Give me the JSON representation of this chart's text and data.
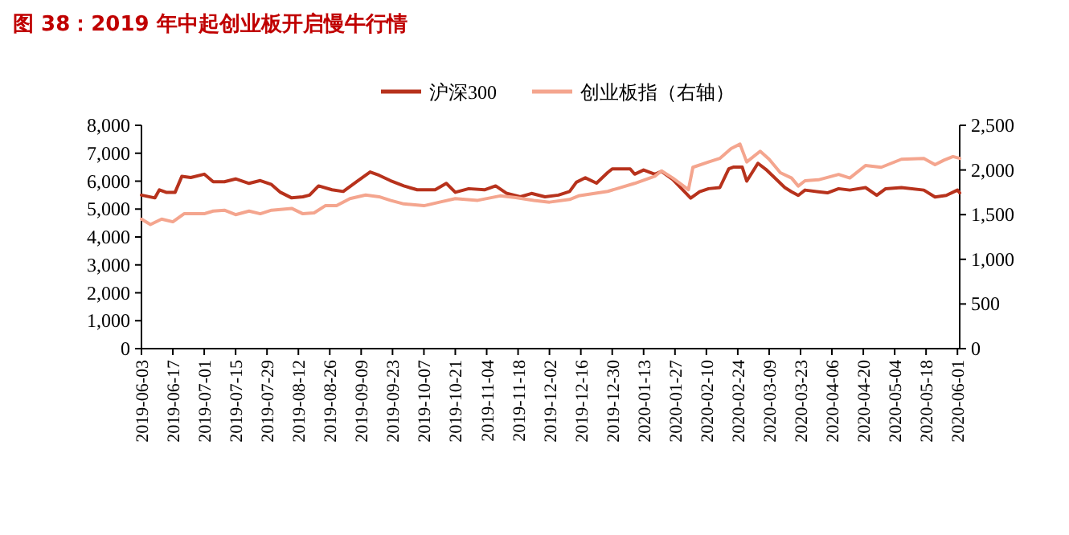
{
  "chart_data": {
    "type": "line",
    "title": "图 38：2019 年中起创业板开启慢牛行情",
    "legend": "top",
    "grid": false,
    "line_style": "solid",
    "marker": "none",
    "xlim": [
      "2019-06-03",
      "2020-06-02"
    ],
    "xticks": [
      "2019-06-03",
      "2019-06-17",
      "2019-07-01",
      "2019-07-15",
      "2019-07-29",
      "2019-08-12",
      "2019-08-26",
      "2019-09-09",
      "2019-09-23",
      "2019-10-07",
      "2019-10-21",
      "2019-11-04",
      "2019-11-18",
      "2019-12-02",
      "2019-12-16",
      "2019-12-30",
      "2020-01-13",
      "2020-01-27",
      "2020-02-10",
      "2020-02-24",
      "2020-03-09",
      "2020-03-23",
      "2020-04-06",
      "2020-04-20",
      "2020-05-04",
      "2020-05-18",
      "2020-06-01"
    ],
    "ylim": [
      0,
      8000
    ],
    "yticks": [
      0,
      {
        "value": 1000,
        "label": "1,000"
      },
      {
        "value": 2000,
        "label": "2,000"
      },
      {
        "value": 3000,
        "label": "3,000"
      },
      {
        "value": 4000,
        "label": "4,000"
      },
      {
        "value": 5000,
        "label": "5,000"
      },
      {
        "value": 6000,
        "label": "6,000"
      },
      {
        "value": 7000,
        "label": "7,000"
      },
      {
        "value": 8000,
        "label": "8,000"
      }
    ],
    "y2lim": [
      0,
      2500
    ],
    "y2ticks": [
      0,
      500,
      {
        "value": 1000,
        "label": "1,000"
      },
      {
        "value": 1500,
        "label": "1,500"
      },
      {
        "value": 2000,
        "label": "2,000"
      },
      {
        "value": 2500,
        "label": "2,500"
      }
    ],
    "series": [
      {
        "name": "沪深300",
        "color": "#b7321c",
        "x": [
          "2019-06-03",
          "2019-06-09",
          "2019-06-11",
          "2019-06-14",
          "2019-06-18",
          "2019-06-21",
          "2019-06-25",
          "2019-07-01",
          "2019-07-05",
          "2019-07-10",
          "2019-07-15",
          "2019-07-21",
          "2019-07-26",
          "2019-07-31",
          "2019-08-04",
          "2019-08-09",
          "2019-08-14",
          "2019-08-17",
          "2019-08-21",
          "2019-08-27",
          "2019-09-01",
          "2019-09-07",
          "2019-09-13",
          "2019-09-17",
          "2019-09-22",
          "2019-09-28",
          "2019-10-04",
          "2019-10-12",
          "2019-10-17",
          "2019-10-21",
          "2019-10-27",
          "2019-11-03",
          "2019-11-08",
          "2019-11-13",
          "2019-11-19",
          "2019-11-24",
          "2019-11-30",
          "2019-12-06",
          "2019-12-11",
          "2019-12-14",
          "2019-12-18",
          "2019-12-23",
          "2019-12-28",
          "2019-12-30",
          "2020-01-07",
          "2020-01-09",
          "2020-01-13",
          "2020-01-18",
          "2020-01-21",
          "2020-01-26",
          "2020-02-03",
          "2020-02-07",
          "2020-02-11",
          "2020-02-16",
          "2020-02-20",
          "2020-02-22",
          "2020-02-26",
          "2020-02-28",
          "2020-03-04",
          "2020-03-08",
          "2020-03-11",
          "2020-03-16",
          "2020-03-19",
          "2020-03-22",
          "2020-03-25",
          "2020-04-04",
          "2020-04-09",
          "2020-04-14",
          "2020-04-21",
          "2020-04-26",
          "2020-04-30",
          "2020-05-07",
          "2020-05-17",
          "2020-05-22",
          "2020-05-27",
          "2020-06-01",
          "2020-06-02"
        ],
        "values": [
          5500,
          5400,
          5690,
          5600,
          5600,
          6170,
          6130,
          6250,
          5980,
          5980,
          6080,
          5920,
          6020,
          5880,
          5600,
          5400,
          5440,
          5500,
          5830,
          5690,
          5630,
          5980,
          6330,
          6210,
          6020,
          5830,
          5690,
          5690,
          5920,
          5600,
          5730,
          5690,
          5830,
          5560,
          5440,
          5560,
          5440,
          5500,
          5630,
          5960,
          6120,
          5930,
          6310,
          6440,
          6440,
          6250,
          6400,
          6250,
          6350,
          6060,
          5390,
          5620,
          5730,
          5770,
          6440,
          6500,
          6500,
          6000,
          6640,
          6390,
          6160,
          5770,
          5620,
          5490,
          5680,
          5580,
          5730,
          5680,
          5770,
          5490,
          5730,
          5770,
          5680,
          5430,
          5490,
          5680,
          5580
        ]
      },
      {
        "name": "创业板指（右轴）",
        "color": "#f4a58e",
        "axis": "y2",
        "x": [
          "2019-06-03",
          "2019-06-07",
          "2019-06-12",
          "2019-06-17",
          "2019-06-22",
          "2019-07-01",
          "2019-07-05",
          "2019-07-10",
          "2019-07-15",
          "2019-07-21",
          "2019-07-26",
          "2019-07-31",
          "2019-08-09",
          "2019-08-14",
          "2019-08-19",
          "2019-08-24",
          "2019-08-29",
          "2019-09-04",
          "2019-09-11",
          "2019-09-17",
          "2019-09-22",
          "2019-09-28",
          "2019-10-07",
          "2019-10-14",
          "2019-10-21",
          "2019-10-31",
          "2019-11-10",
          "2019-11-17",
          "2019-11-25",
          "2019-12-02",
          "2019-12-11",
          "2019-12-15",
          "2019-12-28",
          "2020-01-09",
          "2020-01-18",
          "2020-01-21",
          "2020-01-26",
          "2020-02-02",
          "2020-02-04",
          "2020-02-11",
          "2020-02-16",
          "2020-02-21",
          "2020-02-25",
          "2020-02-28",
          "2020-03-05",
          "2020-03-09",
          "2020-03-14",
          "2020-03-19",
          "2020-03-22",
          "2020-03-25",
          "2020-03-31",
          "2020-04-09",
          "2020-04-14",
          "2020-04-21",
          "2020-04-28",
          "2020-05-07",
          "2020-05-17",
          "2020-05-22",
          "2020-05-26",
          "2020-05-30",
          "2020-06-02"
        ],
        "values": [
          1450,
          1390,
          1450,
          1420,
          1510,
          1510,
          1540,
          1550,
          1500,
          1540,
          1510,
          1550,
          1570,
          1510,
          1520,
          1600,
          1600,
          1680,
          1720,
          1700,
          1660,
          1620,
          1600,
          1640,
          1680,
          1660,
          1710,
          1690,
          1660,
          1640,
          1670,
          1710,
          1760,
          1850,
          1930,
          1990,
          1910,
          1780,
          2030,
          2090,
          2130,
          2240,
          2290,
          2090,
          2210,
          2120,
          1970,
          1910,
          1820,
          1880,
          1890,
          1950,
          1910,
          2050,
          2030,
          2120,
          2130,
          2060,
          2110,
          2150,
          2130
        ]
      }
    ]
  }
}
